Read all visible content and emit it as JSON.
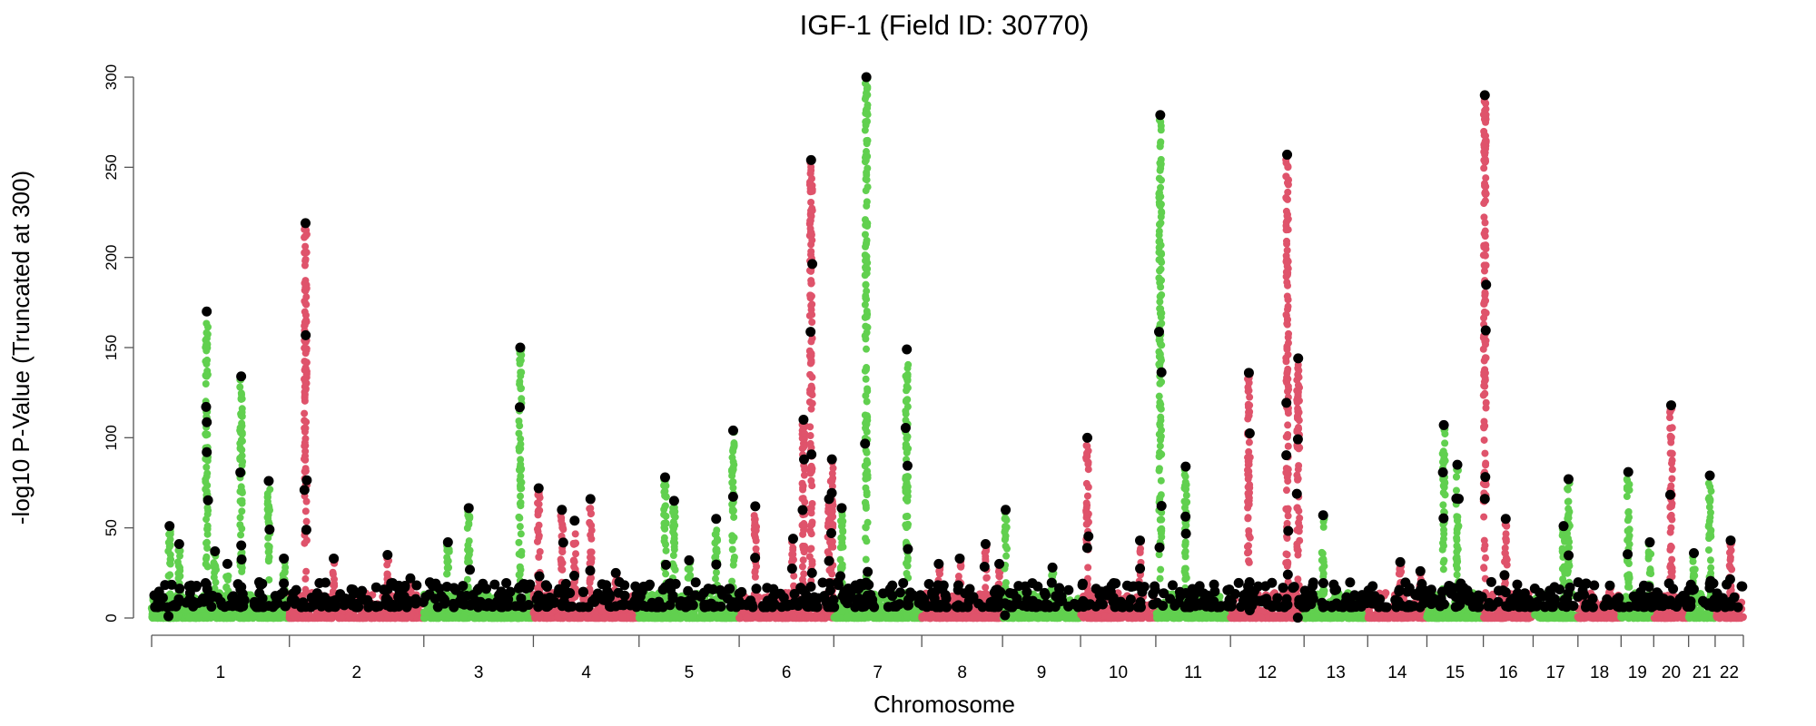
{
  "chart_data": {
    "type": "scatter",
    "subtype": "manhattan",
    "title": "IGF-1 (Field ID: 30770)",
    "xlabel": "Chromosome",
    "ylabel": "-log10 P-Value (Truncated at 300)",
    "ylim": [
      0,
      300
    ],
    "yticks": [
      0,
      50,
      100,
      150,
      200,
      250,
      300
    ],
    "grid": false,
    "colors": {
      "odd": "#61D04F",
      "even": "#DF536B",
      "lead": "#000000"
    },
    "chromosomes": [
      "1",
      "2",
      "3",
      "4",
      "5",
      "6",
      "7",
      "8",
      "9",
      "10",
      "11",
      "12",
      "13",
      "14",
      "15",
      "16",
      "17",
      "18",
      "19",
      "20",
      "21",
      "22"
    ],
    "chromosome_lengths_mb": [
      249,
      243,
      198,
      191,
      181,
      171,
      159,
      146,
      141,
      136,
      135,
      133,
      115,
      107,
      102,
      90,
      81,
      78,
      59,
      63,
      48,
      51
    ],
    "peaks": [
      {
        "chr": 1,
        "pos": 0.13,
        "value": 51
      },
      {
        "chr": 1,
        "pos": 0.2,
        "value": 41
      },
      {
        "chr": 1,
        "pos": 0.4,
        "value": 170
      },
      {
        "chr": 1,
        "pos": 0.46,
        "value": 37
      },
      {
        "chr": 1,
        "pos": 0.55,
        "value": 30
      },
      {
        "chr": 1,
        "pos": 0.65,
        "value": 134
      },
      {
        "chr": 1,
        "pos": 0.85,
        "value": 76
      },
      {
        "chr": 1,
        "pos": 0.96,
        "value": 33
      },
      {
        "chr": 2,
        "pos": 0.12,
        "value": 219
      },
      {
        "chr": 2,
        "pos": 0.33,
        "value": 33
      },
      {
        "chr": 2,
        "pos": 0.73,
        "value": 35
      },
      {
        "chr": 2,
        "pos": 0.9,
        "value": 22
      },
      {
        "chr": 3,
        "pos": 0.22,
        "value": 42
      },
      {
        "chr": 3,
        "pos": 0.41,
        "value": 61
      },
      {
        "chr": 3,
        "pos": 0.88,
        "value": 150
      },
      {
        "chr": 4,
        "pos": 0.05,
        "value": 72
      },
      {
        "chr": 4,
        "pos": 0.27,
        "value": 60
      },
      {
        "chr": 4,
        "pos": 0.39,
        "value": 54
      },
      {
        "chr": 4,
        "pos": 0.54,
        "value": 66
      },
      {
        "chr": 4,
        "pos": 0.78,
        "value": 25
      },
      {
        "chr": 5,
        "pos": 0.26,
        "value": 78
      },
      {
        "chr": 5,
        "pos": 0.35,
        "value": 65
      },
      {
        "chr": 5,
        "pos": 0.5,
        "value": 32
      },
      {
        "chr": 5,
        "pos": 0.77,
        "value": 55
      },
      {
        "chr": 5,
        "pos": 0.94,
        "value": 104
      },
      {
        "chr": 6,
        "pos": 0.17,
        "value": 62
      },
      {
        "chr": 6,
        "pos": 0.57,
        "value": 44
      },
      {
        "chr": 6,
        "pos": 0.68,
        "value": 110
      },
      {
        "chr": 6,
        "pos": 0.76,
        "value": 254
      },
      {
        "chr": 6,
        "pos": 0.95,
        "value": 66
      },
      {
        "chr": 6,
        "pos": 0.98,
        "value": 88
      },
      {
        "chr": 7,
        "pos": 0.09,
        "value": 61
      },
      {
        "chr": 7,
        "pos": 0.37,
        "value": 300
      },
      {
        "chr": 7,
        "pos": 0.83,
        "value": 149
      },
      {
        "chr": 8,
        "pos": 0.21,
        "value": 30
      },
      {
        "chr": 8,
        "pos": 0.47,
        "value": 33
      },
      {
        "chr": 8,
        "pos": 0.79,
        "value": 41
      },
      {
        "chr": 8,
        "pos": 0.96,
        "value": 30
      },
      {
        "chr": 9,
        "pos": 0.04,
        "value": 60
      },
      {
        "chr": 9,
        "pos": 0.64,
        "value": 28
      },
      {
        "chr": 10,
        "pos": 0.09,
        "value": 100
      },
      {
        "chr": 10,
        "pos": 0.79,
        "value": 43
      },
      {
        "chr": 11,
        "pos": 0.06,
        "value": 279
      },
      {
        "chr": 11,
        "pos": 0.4,
        "value": 84
      },
      {
        "chr": 12,
        "pos": 0.25,
        "value": 136
      },
      {
        "chr": 12,
        "pos": 0.77,
        "value": 257
      },
      {
        "chr": 12,
        "pos": 0.92,
        "value": 144
      },
      {
        "chr": 13,
        "pos": 0.3,
        "value": 57
      },
      {
        "chr": 14,
        "pos": 0.55,
        "value": 31
      },
      {
        "chr": 14,
        "pos": 0.89,
        "value": 26
      },
      {
        "chr": 15,
        "pos": 0.3,
        "value": 107
      },
      {
        "chr": 15,
        "pos": 0.54,
        "value": 85
      },
      {
        "chr": 16,
        "pos": 0.03,
        "value": 290
      },
      {
        "chr": 16,
        "pos": 0.45,
        "value": 55
      },
      {
        "chr": 17,
        "pos": 0.68,
        "value": 51
      },
      {
        "chr": 17,
        "pos": 0.79,
        "value": 77
      },
      {
        "chr": 18,
        "pos": 0.74,
        "value": 18
      },
      {
        "chr": 19,
        "pos": 0.22,
        "value": 81
      },
      {
        "chr": 19,
        "pos": 0.88,
        "value": 42
      },
      {
        "chr": 20,
        "pos": 0.5,
        "value": 118
      },
      {
        "chr": 21,
        "pos": 0.2,
        "value": 36
      },
      {
        "chr": 21,
        "pos": 0.8,
        "value": 79
      },
      {
        "chr": 22,
        "pos": 0.55,
        "value": 43
      }
    ]
  }
}
